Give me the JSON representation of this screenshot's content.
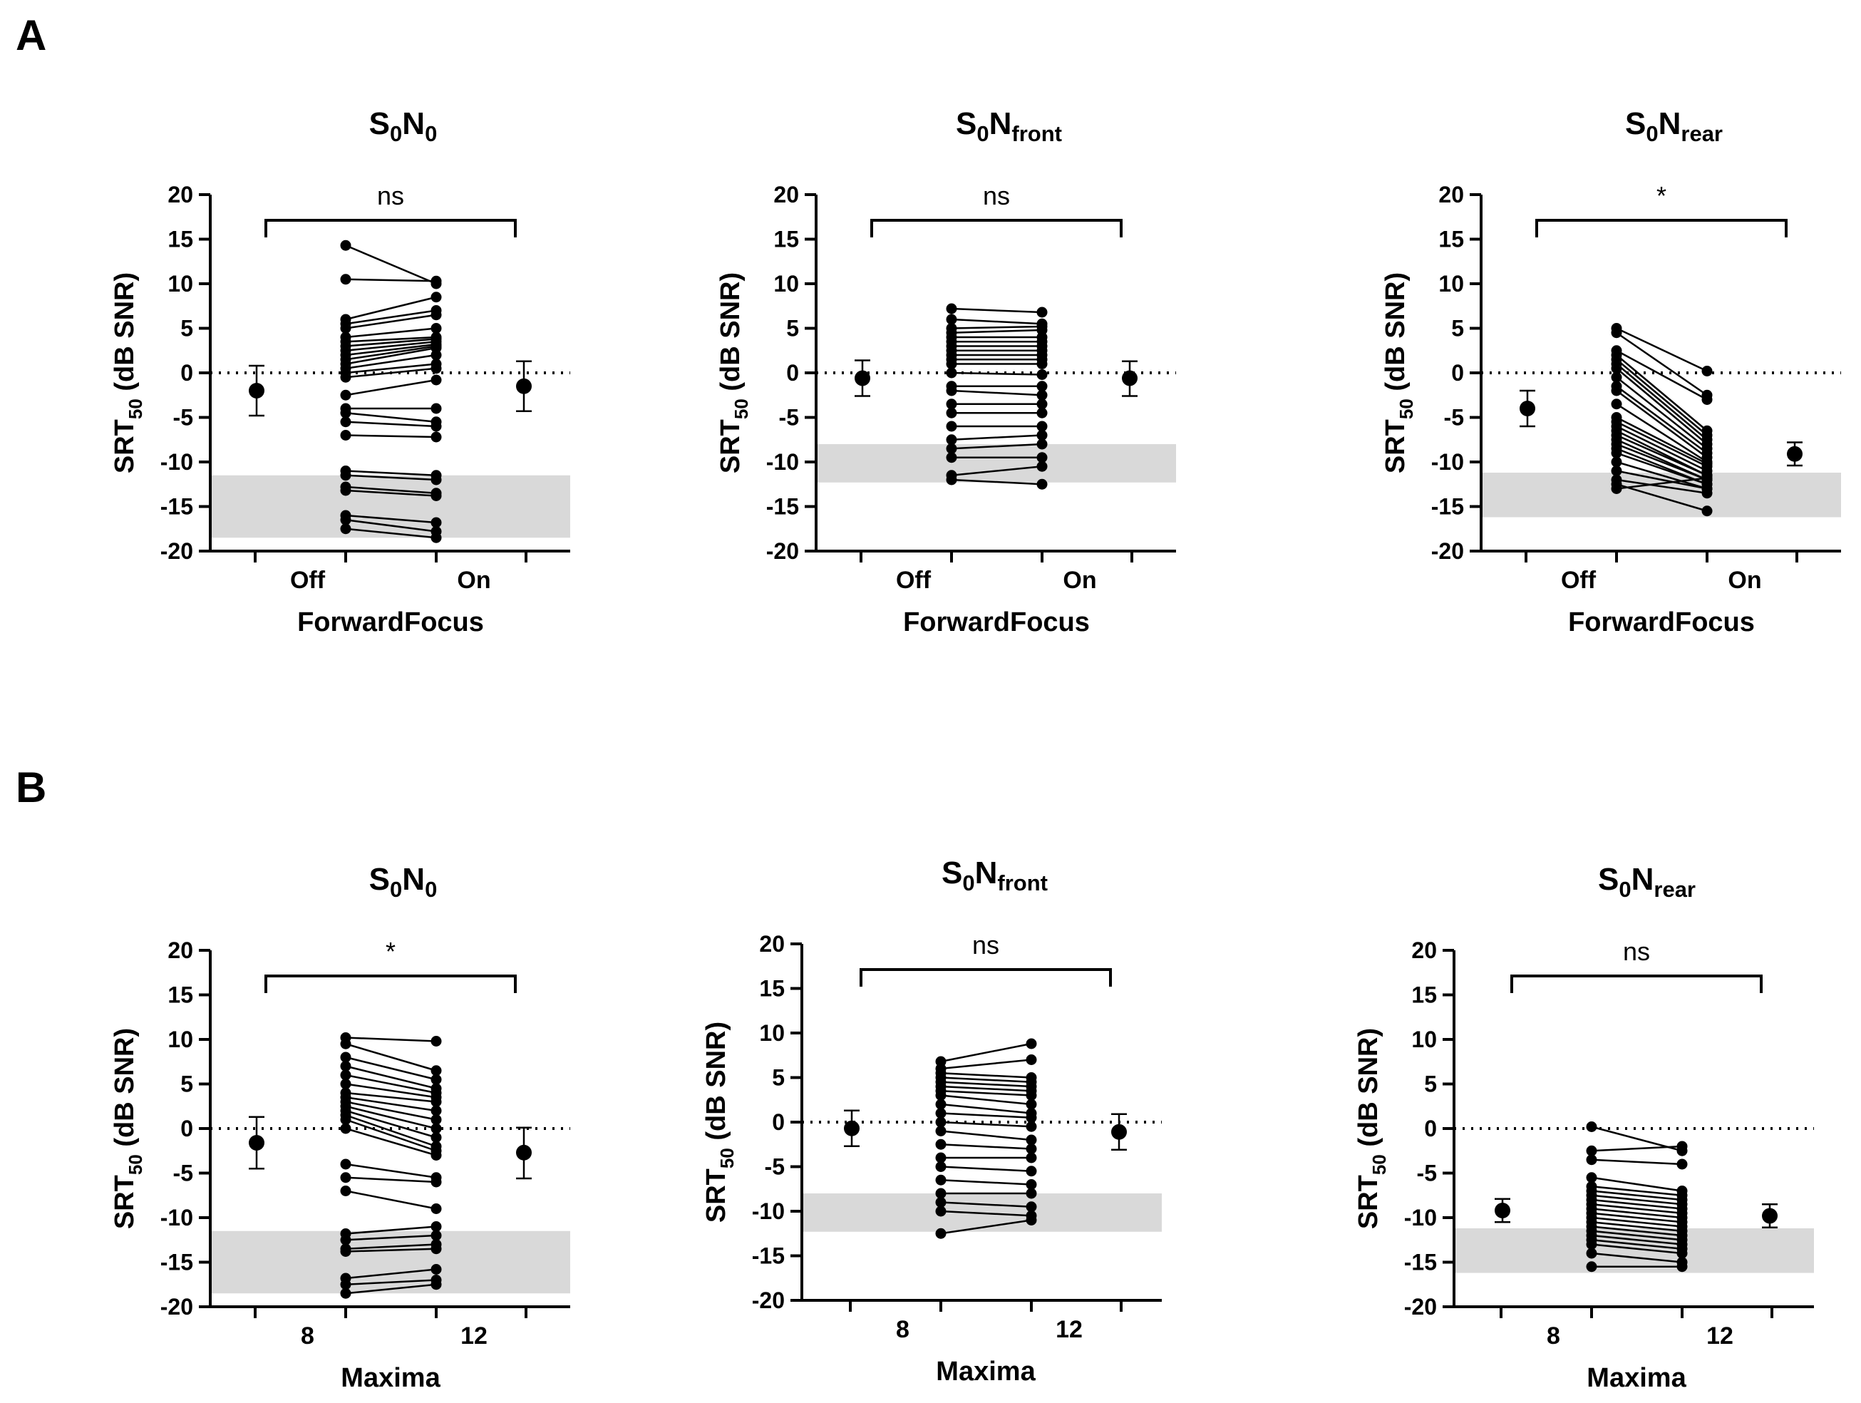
{
  "panels": [
    {
      "letter": "A"
    },
    {
      "letter": "B"
    }
  ],
  "chart_data": [
    {
      "type": "scatter",
      "panel": "A",
      "title": {
        "main": "S",
        "sub1": "0",
        "mid": "N",
        "sub2": "0"
      },
      "ylabel": {
        "main": "SRT",
        "sub": "50",
        "rest": " (dB SNR)"
      },
      "xlabel": "ForwardFocus",
      "categories": [
        "Off",
        "On"
      ],
      "ylim": [
        -20,
        20
      ],
      "yticks": [
        "20",
        "15",
        "10",
        "5",
        "0",
        "-5",
        "-10",
        "-15",
        "-20"
      ],
      "significance": "ns",
      "reference_band": [
        -18.5,
        -11.5
      ],
      "mean_points": [
        {
          "name": "Off",
          "mean": -2.0,
          "err_low": -4.8,
          "err_high": 0.8
        },
        {
          "name": "On",
          "mean": -1.5,
          "err_low": -4.3,
          "err_high": 1.3
        }
      ],
      "paired": [
        [
          14.3,
          10.0
        ],
        [
          10.5,
          10.3
        ],
        [
          6.0,
          8.5
        ],
        [
          5.5,
          7.0
        ],
        [
          5.0,
          6.5
        ],
        [
          4.0,
          5.0
        ],
        [
          3.5,
          4.0
        ],
        [
          3.0,
          3.8
        ],
        [
          2.5,
          3.5
        ],
        [
          2.0,
          3.2
        ],
        [
          1.5,
          3.0
        ],
        [
          1.0,
          2.8
        ],
        [
          0.5,
          2.0
        ],
        [
          0.0,
          1.0
        ],
        [
          -0.5,
          0.5
        ],
        [
          -2.5,
          -0.8
        ],
        [
          -4.0,
          -4.0
        ],
        [
          -4.5,
          -5.5
        ],
        [
          -5.5,
          -6.0
        ],
        [
          -7.0,
          -7.2
        ],
        [
          -11.0,
          -11.5
        ],
        [
          -11.5,
          -12.0
        ],
        [
          -12.8,
          -13.5
        ],
        [
          -13.2,
          -13.8
        ],
        [
          -16.0,
          -16.8
        ],
        [
          -16.5,
          -17.8
        ],
        [
          -17.5,
          -18.5
        ]
      ]
    },
    {
      "type": "scatter",
      "panel": "A",
      "title": {
        "main": "S",
        "sub1": "0",
        "mid": "N",
        "sub2": "front"
      },
      "ylabel": {
        "main": "SRT",
        "sub": "50",
        "rest": " (dB SNR)"
      },
      "xlabel": "ForwardFocus",
      "categories": [
        "Off",
        "On"
      ],
      "ylim": [
        -20,
        20
      ],
      "yticks": [
        "20",
        "15",
        "10",
        "5",
        "0",
        "-5",
        "-10",
        "-15",
        "-20"
      ],
      "significance": "ns",
      "reference_band": [
        -12.3,
        -8.0
      ],
      "mean_points": [
        {
          "name": "Off",
          "mean": -0.6,
          "err_low": -2.6,
          "err_high": 1.4
        },
        {
          "name": "On",
          "mean": -0.6,
          "err_low": -2.6,
          "err_high": 1.3
        }
      ],
      "paired": [
        [
          7.2,
          6.8
        ],
        [
          6.0,
          5.5
        ],
        [
          5.0,
          5.2
        ],
        [
          4.5,
          4.8
        ],
        [
          4.0,
          4.0
        ],
        [
          3.5,
          3.5
        ],
        [
          3.0,
          3.0
        ],
        [
          2.5,
          2.5
        ],
        [
          2.0,
          2.0
        ],
        [
          1.5,
          1.5
        ],
        [
          1.0,
          1.0
        ],
        [
          0.0,
          -0.2
        ],
        [
          -1.5,
          -1.5
        ],
        [
          -2.0,
          -2.5
        ],
        [
          -3.5,
          -3.5
        ],
        [
          -4.5,
          -4.5
        ],
        [
          -6.0,
          -6.0
        ],
        [
          -7.5,
          -7.0
        ],
        [
          -8.5,
          -8.0
        ],
        [
          -9.5,
          -9.5
        ],
        [
          -11.5,
          -10.5
        ],
        [
          -12.0,
          -12.5
        ]
      ]
    },
    {
      "type": "scatter",
      "panel": "A",
      "title": {
        "main": "S",
        "sub1": "0",
        "mid": "N",
        "sub2": "rear"
      },
      "ylabel": {
        "main": "SRT",
        "sub": "50",
        "rest": " (dB SNR)"
      },
      "xlabel": "ForwardFocus",
      "categories": [
        "Off",
        "On"
      ],
      "ylim": [
        -20,
        20
      ],
      "yticks": [
        "20",
        "15",
        "10",
        "5",
        "0",
        "-5",
        "-10",
        "-15",
        "-20"
      ],
      "significance": "*",
      "reference_band": [
        -16.2,
        -11.2
      ],
      "mean_points": [
        {
          "name": "Off",
          "mean": -4.0,
          "err_low": -6.0,
          "err_high": -2.0
        },
        {
          "name": "On",
          "mean": -9.1,
          "err_low": -10.4,
          "err_high": -7.8
        }
      ],
      "paired": [
        [
          5.0,
          0.2
        ],
        [
          4.5,
          -2.5
        ],
        [
          2.5,
          -3.0
        ],
        [
          2.0,
          -6.5
        ],
        [
          1.5,
          -7.0
        ],
        [
          1.0,
          -7.5
        ],
        [
          0.5,
          -8.0
        ],
        [
          -0.5,
          -8.5
        ],
        [
          -1.5,
          -9.0
        ],
        [
          -2.0,
          -9.5
        ],
        [
          -3.5,
          -10.0
        ],
        [
          -5.0,
          -10.2
        ],
        [
          -5.5,
          -10.5
        ],
        [
          -6.0,
          -11.0
        ],
        [
          -6.5,
          -11.5
        ],
        [
          -7.0,
          -11.5
        ],
        [
          -7.5,
          -12.0
        ],
        [
          -8.0,
          -12.0
        ],
        [
          -8.5,
          -12.5
        ],
        [
          -9.0,
          -12.5
        ],
        [
          -10.0,
          -13.0
        ],
        [
          -11.0,
          -13.0
        ],
        [
          -12.0,
          -13.5
        ],
        [
          -12.5,
          -15.5
        ],
        [
          -13.0,
          -11.8
        ]
      ]
    },
    {
      "type": "scatter",
      "panel": "B",
      "title": {
        "main": "S",
        "sub1": "0",
        "mid": "N",
        "sub2": "0"
      },
      "ylabel": {
        "main": "SRT",
        "sub": "50",
        "rest": " (dB SNR)"
      },
      "xlabel": "Maxima",
      "categories": [
        "8",
        "12"
      ],
      "ylim": [
        -20,
        20
      ],
      "yticks": [
        "20",
        "15",
        "10",
        "5",
        "0",
        "-5",
        "-10",
        "-15",
        "-20"
      ],
      "significance": "*",
      "reference_band": [
        -18.5,
        -11.5
      ],
      "mean_points": [
        {
          "name": "8",
          "mean": -1.6,
          "err_low": -4.5,
          "err_high": 1.3
        },
        {
          "name": "12",
          "mean": -2.7,
          "err_low": -5.6,
          "err_high": 0.1
        }
      ],
      "paired": [
        [
          10.2,
          9.8
        ],
        [
          9.5,
          6.5
        ],
        [
          8.0,
          5.5
        ],
        [
          7.0,
          4.5
        ],
        [
          6.0,
          4.0
        ],
        [
          5.0,
          3.5
        ],
        [
          4.0,
          3.0
        ],
        [
          3.5,
          2.0
        ],
        [
          3.0,
          1.0
        ],
        [
          2.5,
          0.0
        ],
        [
          2.0,
          -1.0
        ],
        [
          1.5,
          -2.0
        ],
        [
          1.0,
          -2.5
        ],
        [
          0.0,
          -3.0
        ],
        [
          -4.0,
          -5.5
        ],
        [
          -5.5,
          -6.0
        ],
        [
          -7.0,
          -9.0
        ],
        [
          -11.8,
          -11.0
        ],
        [
          -12.5,
          -12.0
        ],
        [
          -13.5,
          -13.0
        ],
        [
          -13.8,
          -13.5
        ],
        [
          -16.8,
          -15.8
        ],
        [
          -17.5,
          -17.0
        ],
        [
          -18.5,
          -17.5
        ]
      ]
    },
    {
      "type": "scatter",
      "panel": "B",
      "title": {
        "main": "S",
        "sub1": "0",
        "mid": "N",
        "sub2": "front"
      },
      "ylabel": {
        "main": "SRT",
        "sub": "50",
        "rest": " (dB SNR)"
      },
      "xlabel": "Maxima",
      "categories": [
        "8",
        "12"
      ],
      "ylim": [
        -20,
        20
      ],
      "yticks": [
        "20",
        "15",
        "10",
        "5",
        "0",
        "-5",
        "-10",
        "-15",
        "-20"
      ],
      "significance": "ns",
      "reference_band": [
        -12.3,
        -8.0
      ],
      "mean_points": [
        {
          "name": "8",
          "mean": -0.7,
          "err_low": -2.7,
          "err_high": 1.3
        },
        {
          "name": "12",
          "mean": -1.1,
          "err_low": -3.1,
          "err_high": 0.9
        }
      ],
      "paired": [
        [
          6.8,
          8.8
        ],
        [
          6.0,
          7.0
        ],
        [
          5.5,
          5.0
        ],
        [
          5.0,
          4.5
        ],
        [
          4.5,
          4.0
        ],
        [
          4.0,
          3.5
        ],
        [
          3.5,
          3.0
        ],
        [
          3.0,
          2.0
        ],
        [
          2.0,
          1.0
        ],
        [
          1.0,
          0.5
        ],
        [
          0.0,
          -0.5
        ],
        [
          -1.0,
          -2.0
        ],
        [
          -2.5,
          -3.0
        ],
        [
          -4.0,
          -4.0
        ],
        [
          -5.0,
          -5.5
        ],
        [
          -6.5,
          -7.0
        ],
        [
          -8.0,
          -8.0
        ],
        [
          -9.0,
          -9.5
        ],
        [
          -10.0,
          -10.5
        ],
        [
          -12.5,
          -11.0
        ]
      ]
    },
    {
      "type": "scatter",
      "panel": "B",
      "title": {
        "main": "S",
        "sub1": "0",
        "mid": "N",
        "sub2": "rear"
      },
      "ylabel": {
        "main": "SRT",
        "sub": "50",
        "rest": " (dB SNR)"
      },
      "xlabel": "Maxima",
      "categories": [
        "8",
        "12"
      ],
      "ylim": [
        -20,
        20
      ],
      "yticks": [
        "20",
        "15",
        "10",
        "5",
        "0",
        "-5",
        "-10",
        "-15",
        "-20"
      ],
      "significance": "ns",
      "reference_band": [
        -16.2,
        -11.2
      ],
      "mean_points": [
        {
          "name": "8",
          "mean": -9.2,
          "err_low": -10.5,
          "err_high": -7.9
        },
        {
          "name": "12",
          "mean": -9.8,
          "err_low": -11.1,
          "err_high": -8.5
        }
      ],
      "paired": [
        [
          0.2,
          -2.5
        ],
        [
          -2.5,
          -2.0
        ],
        [
          -3.5,
          -4.0
        ],
        [
          -5.5,
          -7.0
        ],
        [
          -6.5,
          -7.5
        ],
        [
          -7.0,
          -8.0
        ],
        [
          -7.5,
          -8.5
        ],
        [
          -8.0,
          -9.0
        ],
        [
          -8.5,
          -9.5
        ],
        [
          -9.0,
          -10.0
        ],
        [
          -9.5,
          -10.5
        ],
        [
          -10.0,
          -11.0
        ],
        [
          -10.5,
          -11.5
        ],
        [
          -11.0,
          -12.0
        ],
        [
          -11.5,
          -12.5
        ],
        [
          -12.0,
          -13.0
        ],
        [
          -12.5,
          -13.5
        ],
        [
          -13.0,
          -14.0
        ],
        [
          -14.0,
          -15.0
        ],
        [
          -15.5,
          -15.5
        ]
      ]
    }
  ]
}
